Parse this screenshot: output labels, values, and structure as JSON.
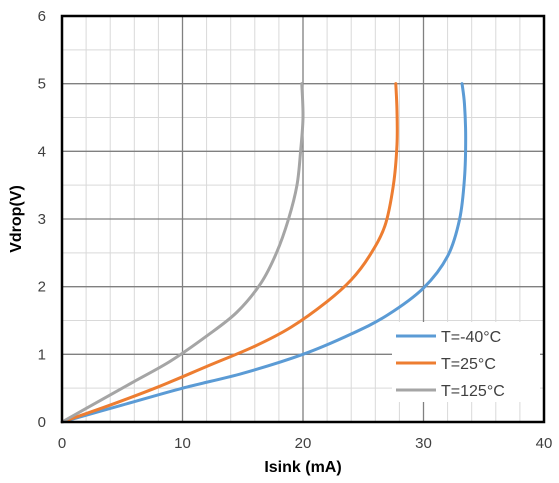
{
  "chart_data": {
    "type": "line",
    "xlabel": "Isink (mA)",
    "ylabel": "Vdrop(V)",
    "xlim": [
      0,
      40
    ],
    "ylim": [
      0,
      6
    ],
    "x_ticks": [
      "0",
      "10",
      "20",
      "30",
      "40"
    ],
    "y_ticks": [
      "0",
      "1",
      "2",
      "3",
      "4",
      "5",
      "6"
    ],
    "x_minor_step": 2,
    "y_minor_step": 0.5,
    "grid": true,
    "legend_position": "bottom-right",
    "series": [
      {
        "name": "T=-40°C",
        "color": "#5B9BD5",
        "points": [
          [
            0,
            0
          ],
          [
            5,
            0.25
          ],
          [
            10,
            0.5
          ],
          [
            15,
            0.72
          ],
          [
            20,
            1.0
          ],
          [
            24,
            1.3
          ],
          [
            27,
            1.58
          ],
          [
            30,
            1.98
          ],
          [
            32,
            2.45
          ],
          [
            33,
            3.0
          ],
          [
            33.4,
            3.6
          ],
          [
            33.5,
            4.2
          ],
          [
            33.4,
            4.7
          ],
          [
            33.2,
            5.0
          ]
        ]
      },
      {
        "name": "T=25°C",
        "color": "#ED7D31",
        "points": [
          [
            0,
            0
          ],
          [
            4,
            0.25
          ],
          [
            8,
            0.52
          ],
          [
            12,
            0.82
          ],
          [
            16,
            1.12
          ],
          [
            19,
            1.4
          ],
          [
            22,
            1.78
          ],
          [
            24,
            2.1
          ],
          [
            25.5,
            2.45
          ],
          [
            26.8,
            2.9
          ],
          [
            27.5,
            3.5
          ],
          [
            27.8,
            4.1
          ],
          [
            27.8,
            4.6
          ],
          [
            27.7,
            5.0
          ]
        ]
      },
      {
        "name": "T=125°C",
        "color": "#A5A5A5",
        "points": [
          [
            0,
            0
          ],
          [
            3,
            0.3
          ],
          [
            6,
            0.6
          ],
          [
            9,
            0.9
          ],
          [
            12,
            1.27
          ],
          [
            14.5,
            1.62
          ],
          [
            16.5,
            2.05
          ],
          [
            17.8,
            2.5
          ],
          [
            18.8,
            3.0
          ],
          [
            19.5,
            3.5
          ],
          [
            19.8,
            4.0
          ],
          [
            20.0,
            4.5
          ],
          [
            19.9,
            5.0
          ]
        ]
      }
    ]
  }
}
